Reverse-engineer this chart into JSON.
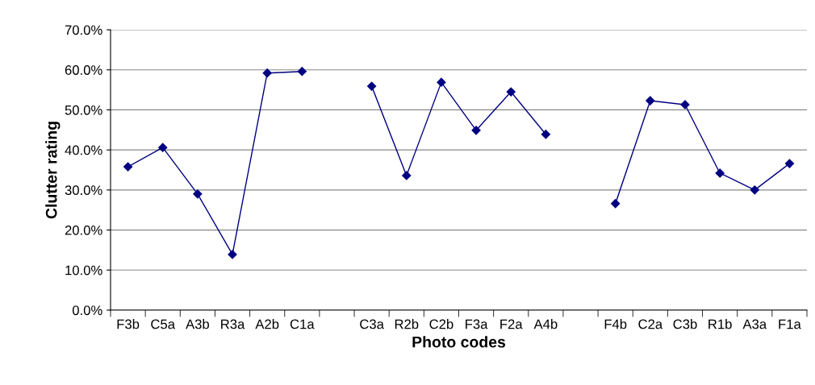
{
  "chart_data": {
    "type": "line",
    "xlabel": "Photo codes",
    "ylabel": "Clutter rating",
    "categories": [
      "F3b",
      "C5a",
      "A3b",
      "R3a",
      "A2b",
      "C1a",
      null,
      "C3a",
      "R2b",
      "C2b",
      "F3a",
      "F2a",
      "A4b",
      null,
      "F4b",
      "C2a",
      "C3b",
      "R1b",
      "A3a",
      "F1a"
    ],
    "series": [
      {
        "color": "#000080",
        "values": [
          35.8,
          40.6,
          29.0,
          13.9,
          59.2,
          59.6,
          null,
          55.9,
          33.6,
          56.9,
          44.9,
          54.5,
          43.9,
          null,
          26.6,
          52.3,
          51.3,
          34.2,
          30.0,
          36.6
        ]
      }
    ],
    "ylim": [
      0,
      70
    ],
    "yticks": [
      {
        "value": 0,
        "label": "0.0%"
      },
      {
        "value": 10,
        "label": "10.0%"
      },
      {
        "value": 20,
        "label": "20.0%"
      },
      {
        "value": 30,
        "label": "30.0%"
      },
      {
        "value": 40,
        "label": "40.0%"
      },
      {
        "value": 50,
        "label": "50.0%"
      },
      {
        "value": 60,
        "label": "60.0%"
      },
      {
        "value": 70,
        "label": "70.0%"
      }
    ],
    "grid": "y",
    "marker": "diamond",
    "line_style": "solid",
    "legend": false
  }
}
